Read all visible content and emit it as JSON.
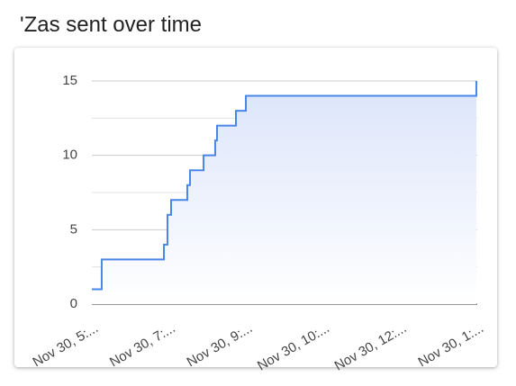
{
  "chart_data": {
    "type": "line",
    "title": "'Zas sent over time",
    "x": [
      0,
      0.128,
      0.128,
      0.935,
      0.935,
      0.981,
      0.981,
      1.028,
      1.028,
      1.238,
      1.238,
      1.273,
      1.273,
      1.449,
      1.449,
      1.6,
      1.6,
      1.624,
      1.624,
      1.869,
      1.869,
      1.998,
      1.998,
      4.988,
      4.988
    ],
    "series": [
      {
        "color": "#4a86e8",
        "values": [
          1,
          1,
          3,
          3,
          4,
          4,
          6,
          6,
          7,
          7,
          8,
          8,
          9,
          9,
          10,
          10,
          11,
          11,
          12,
          12,
          13,
          13,
          14,
          14,
          15
        ]
      }
    ],
    "area": true,
    "xlim": [
      0,
      5
    ],
    "xticks": [
      {
        "value": 0,
        "label": "Nov 30, 5:..."
      },
      {
        "value": 1,
        "label": "Nov 30, 7:..."
      },
      {
        "value": 2,
        "label": "Nov 30, 9:..."
      },
      {
        "value": 3,
        "label": "Nov 30, 10:..."
      },
      {
        "value": 4,
        "label": "Nov 30, 12:..."
      },
      {
        "value": 5,
        "label": "Nov 30, 1:..."
      }
    ],
    "ylim": [
      0,
      15
    ],
    "yticks": [
      0,
      5,
      10,
      15
    ],
    "minor_yticks": [
      2.5,
      7.5,
      12.5
    ],
    "grid": true
  }
}
